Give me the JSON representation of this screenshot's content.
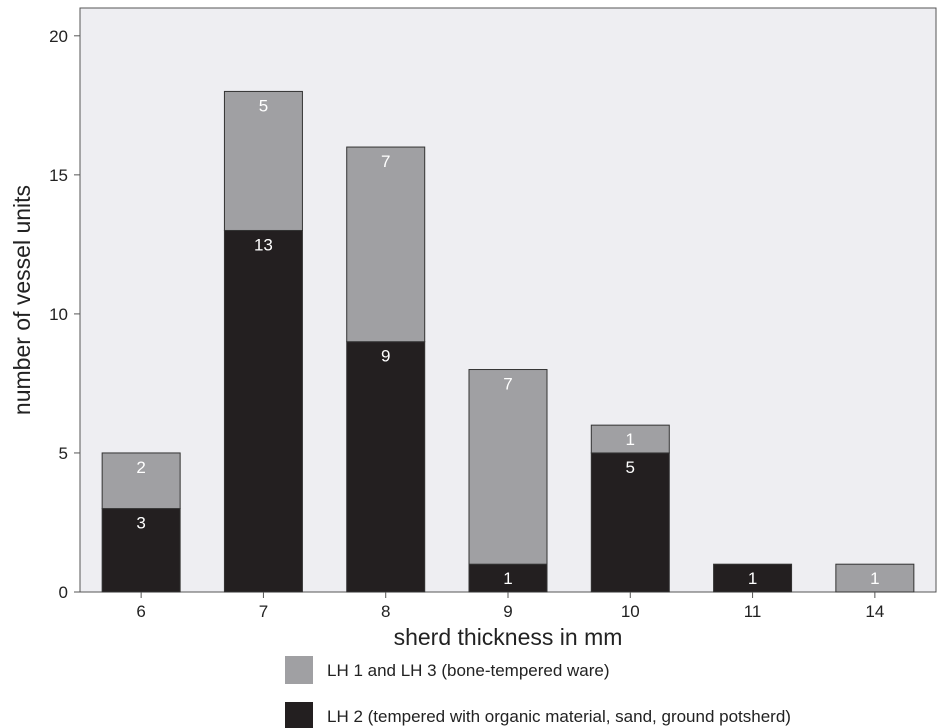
{
  "chart_data": {
    "type": "bar",
    "stacked": true,
    "categories": [
      "6",
      "7",
      "8",
      "9",
      "10",
      "11",
      "14"
    ],
    "series": [
      {
        "name": "LH 2 (tempered with organic material, sand, ground potsherd)",
        "values": [
          3,
          13,
          9,
          1,
          5,
          1,
          0
        ],
        "color": "#231f20"
      },
      {
        "name": "LH 1 and LH 3 (bone-tempered ware)",
        "values": [
          2,
          5,
          7,
          7,
          1,
          0,
          1
        ],
        "color": "#a0a0a3"
      }
    ],
    "xlabel": "sherd thickness in mm",
    "ylabel": "number of vessel units",
    "ylim": [
      0,
      21
    ],
    "yticks": [
      0,
      5,
      10,
      15,
      20
    ],
    "grid": false,
    "legend": "bottom",
    "plot_background": "#eeeef2"
  }
}
